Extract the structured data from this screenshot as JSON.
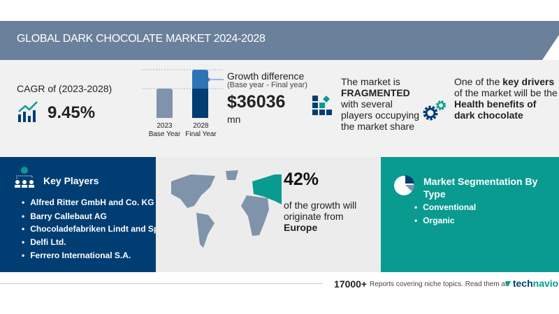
{
  "header": {
    "title": "GLOBAL DARK CHOCOLATE MARKET 2024-2028"
  },
  "cagr": {
    "label": "CAGR of (2023-2028)",
    "value": "9.45%",
    "icon": "growth-chart-icon"
  },
  "bars": {
    "base_year": "2023",
    "base_label": "Base Year",
    "final_year": "2028",
    "final_label": "Final Year"
  },
  "growth": {
    "label": "Growth difference",
    "sublabel": "(Base year - Final year)",
    "value": "$36036",
    "unit": "mn"
  },
  "market": {
    "line1": "The market is",
    "bold": "FRAGMENTED",
    "line2": "with several",
    "line3": "players occupying",
    "line4": "the market share"
  },
  "drivers": {
    "pre": "One of the ",
    "bold1": "key drivers",
    "line2": "of the market will be the",
    "bold2": "Health benefits of",
    "bold3": "dark chocolate"
  },
  "key_players": {
    "title": "Key Players",
    "items": [
      "Alfred Ritter GmbH and Co. KG",
      "Barry Callebaut AG",
      "Chocoladefabriken Lindt and Spru...",
      "Delfi Ltd.",
      "Ferrero International S.A."
    ]
  },
  "region": {
    "percent": "42%",
    "line1": "of the growth will",
    "line2": "originate from",
    "region": "Europe"
  },
  "segmentation": {
    "title1": "Market Segmentation By",
    "title2": "Type",
    "items": [
      "Conventional",
      "Organic"
    ]
  },
  "footer": {
    "count": "17000+",
    "text": "Reports covering niche topics. Read them at",
    "brand1": "tech",
    "brand2": "navio"
  },
  "colors": {
    "header": "#6b819b",
    "navy": "#003d73",
    "teal": "#0a9b90",
    "bar_base": "#7f93ab",
    "bar_top": "#2e74b5"
  }
}
